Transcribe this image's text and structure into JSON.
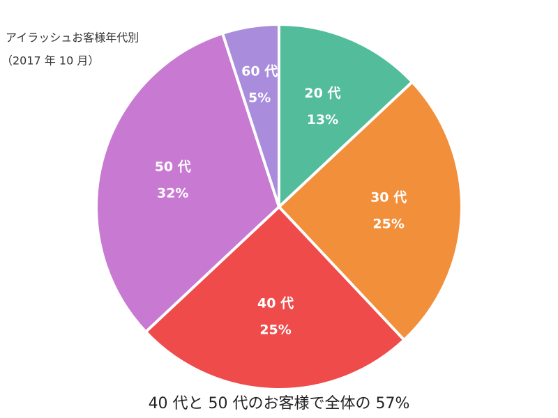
{
  "chart_data": {
    "type": "pie",
    "title": "アイラッシュお客様年代別",
    "subtitle": "（2017 年 10 月）",
    "annotation": "40 代と 50 代のお客様で全体の 57%",
    "categories": [
      "20 代",
      "30 代",
      "40 代",
      "50 代",
      "60 代"
    ],
    "values": [
      13,
      25,
      25,
      32,
      5
    ],
    "value_labels": [
      "13%",
      "25%",
      "25%",
      "32%",
      "5%"
    ],
    "colors": [
      "#52bc9b",
      "#f28f3b",
      "#ee4b4a",
      "#c879d1",
      "#a98ddc"
    ]
  }
}
